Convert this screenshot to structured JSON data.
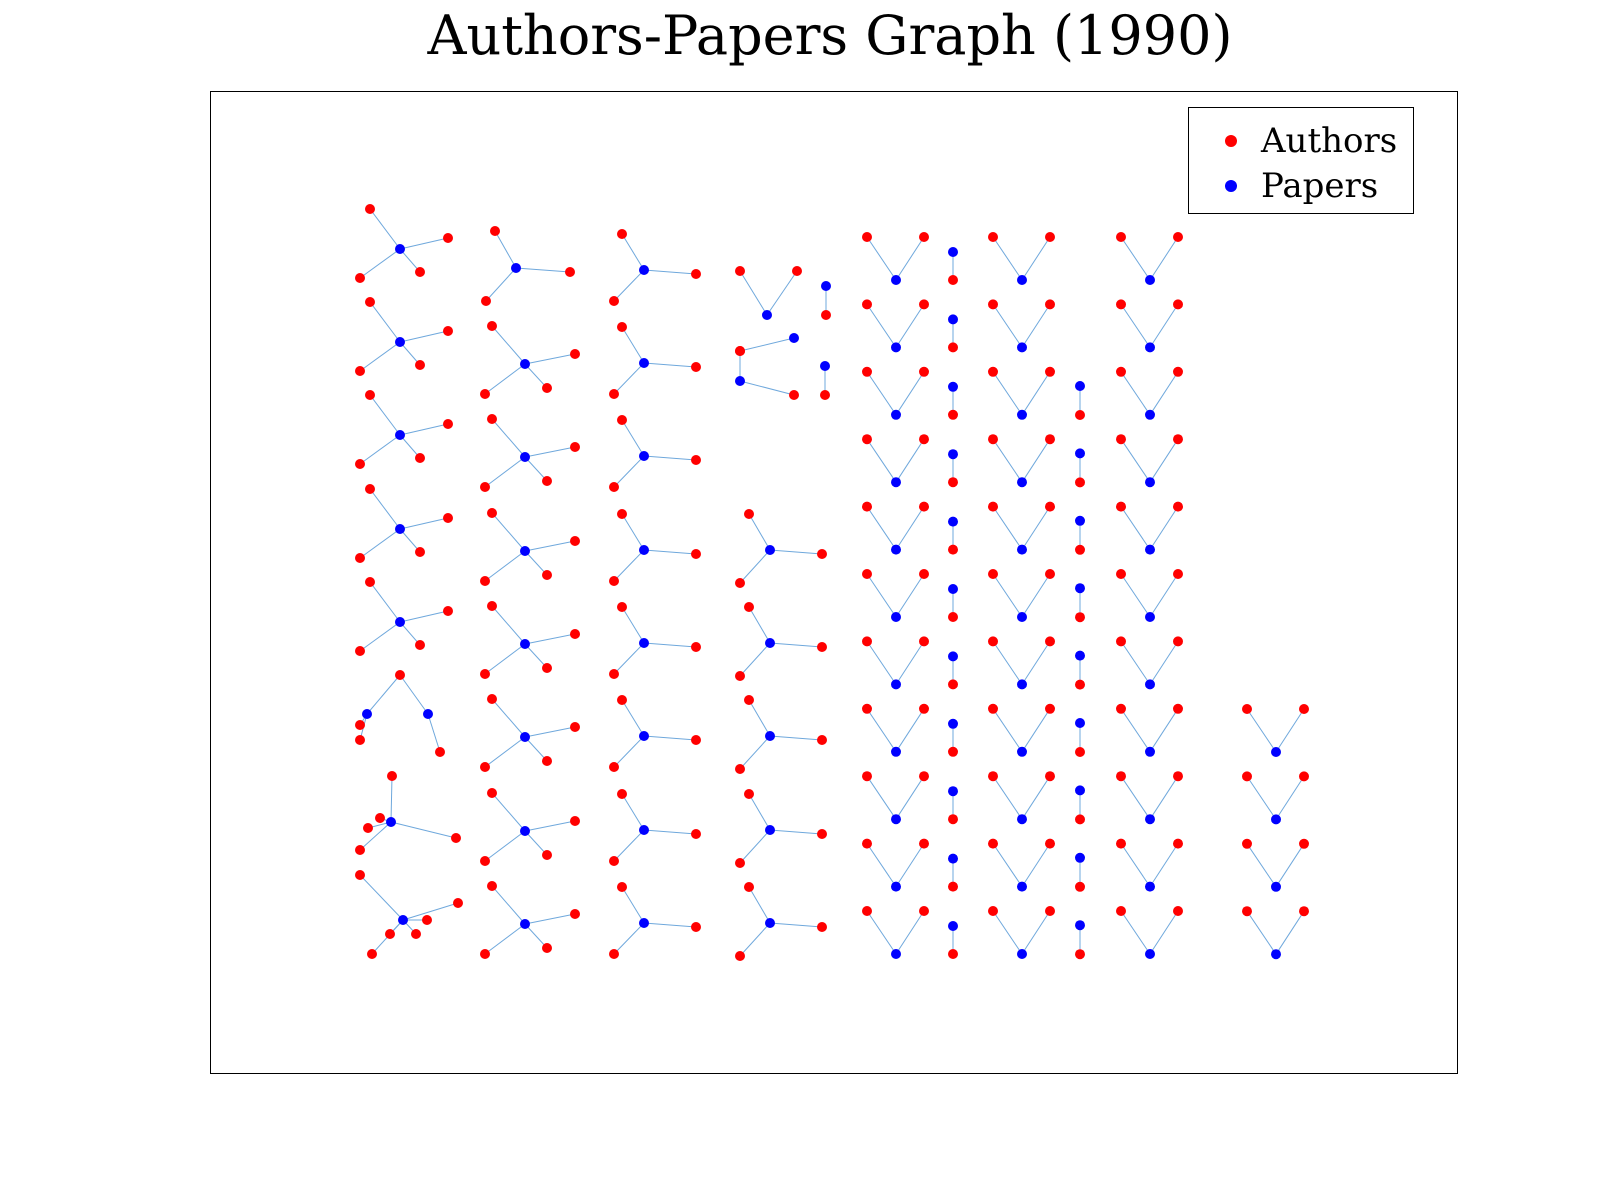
{
  "title": "Authors-Papers Graph (1990)",
  "colors": {
    "authors": "#ff0000",
    "papers": "#0000ff",
    "edges": "#6fa8dc",
    "frame": "#000000"
  },
  "legend": {
    "placement": "top-right",
    "items": [
      {
        "label": "Authors",
        "color": "#ff0000"
      },
      {
        "label": "Papers",
        "color": "#0000ff"
      }
    ]
  }
}
